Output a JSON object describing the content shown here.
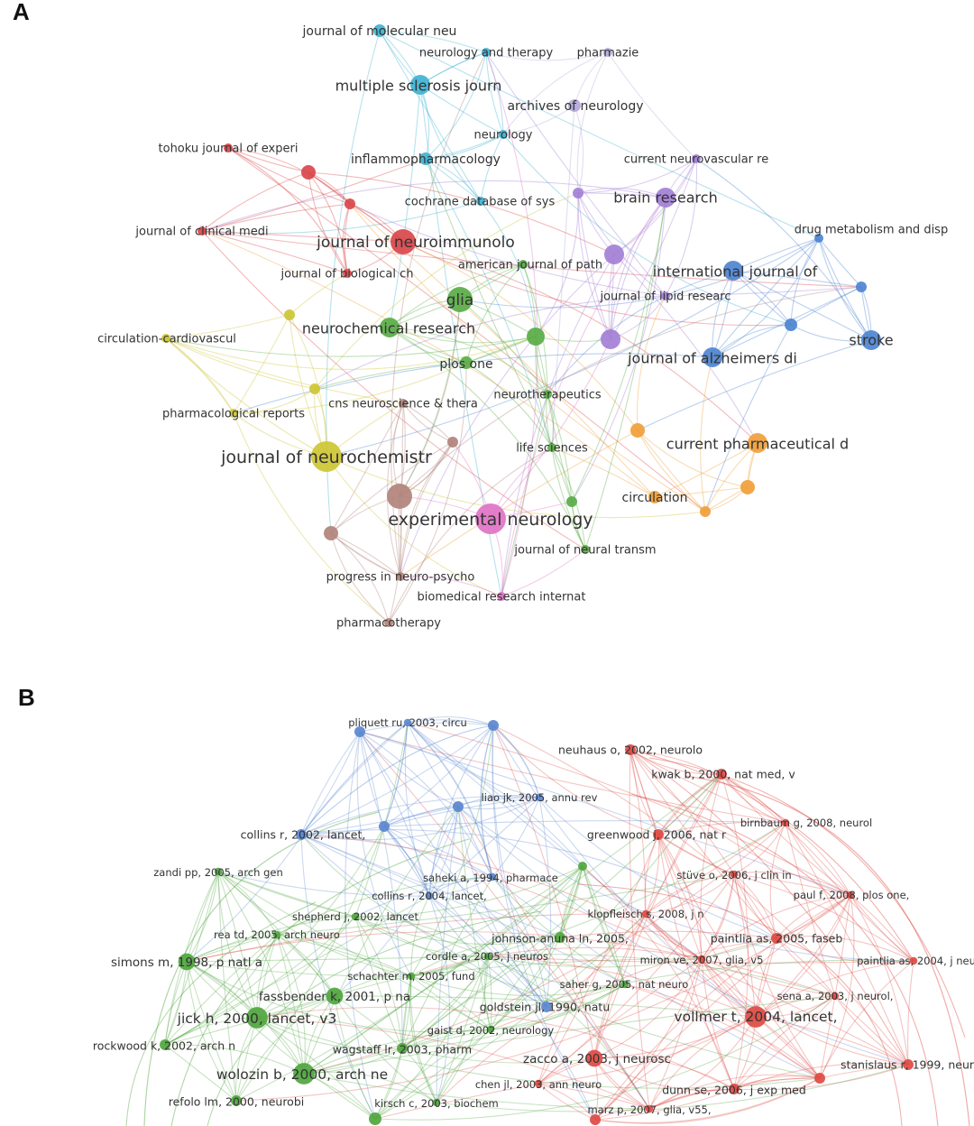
{
  "panels": [
    {
      "letter": "A",
      "colors": {
        "cyan": "#3fb3d2",
        "red": "#d9464a",
        "green": "#59ad47",
        "purple": "#a37fd6",
        "blue": "#4d84d1",
        "yellow": "#cdc635",
        "orange": "#f0a03a",
        "pink": "#e073c6",
        "brown": "#b1837b",
        "lavender": "#b3a7db"
      },
      "nodes": [
        {
          "id": "jmn",
          "label": "journal of molecular neu",
          "cluster": "cyan",
          "size": "s"
        },
        {
          "id": "neuther",
          "label": "neurology and therapy",
          "cluster": "cyan",
          "size": "xs"
        },
        {
          "id": "pharmazie",
          "label": "pharmazie",
          "cluster": "lavender",
          "size": "xs"
        },
        {
          "id": "msj",
          "label": "multiple sclerosis journ",
          "cluster": "cyan",
          "size": "m"
        },
        {
          "id": "archneuro",
          "label": "archives of neurology",
          "cluster": "lavender",
          "size": "s"
        },
        {
          "id": "neurology",
          "label": "neurology",
          "cluster": "cyan",
          "size": "xs"
        },
        {
          "id": "tohoku",
          "label": "tohoku journal of experi",
          "cluster": "red",
          "size": "xs"
        },
        {
          "id": "inflammo",
          "label": "inflammopharmacology",
          "cluster": "cyan",
          "size": "s"
        },
        {
          "id": "curneurovasc",
          "label": "current neurovascular re",
          "cluster": "purple",
          "size": "xs"
        },
        {
          "id": "brainres",
          "label": "brain research",
          "cluster": "purple",
          "size": "m"
        },
        {
          "id": "cochrane",
          "label": "cochrane database of sys",
          "cluster": "cyan",
          "size": "xs"
        },
        {
          "id": "drugmet",
          "label": "drug metabolism and disp",
          "cluster": "blue",
          "size": "xs"
        },
        {
          "id": "jclinmed",
          "label": "journal of clinical medi",
          "cluster": "red",
          "size": "xs"
        },
        {
          "id": "jneuroimm",
          "label": "journal of neuroimmunolo",
          "cluster": "red",
          "size": "l"
        },
        {
          "id": "ajpath",
          "label": "american journal of path",
          "cluster": "green",
          "size": "xs"
        },
        {
          "id": "ijof",
          "label": "international journal of",
          "cluster": "blue",
          "size": "m"
        },
        {
          "id": "jbiolch",
          "label": "journal of biological ch",
          "cluster": "red",
          "size": "xs"
        },
        {
          "id": "glia",
          "label": "glia",
          "cluster": "green",
          "size": "l"
        },
        {
          "id": "jlipid",
          "label": "journal of lipid researc",
          "cluster": "purple",
          "size": "xs"
        },
        {
          "id": "neurochemres",
          "label": "neurochemical research",
          "cluster": "green",
          "size": "m"
        },
        {
          "id": "circcardio",
          "label": "circulation-cardiovascul",
          "cluster": "yellow",
          "size": "xs"
        },
        {
          "id": "stroke",
          "label": "stroke",
          "cluster": "blue",
          "size": "m"
        },
        {
          "id": "plosone",
          "label": "plos one",
          "cluster": "green",
          "size": "s"
        },
        {
          "id": "jalz",
          "label": "journal of alzheimers di",
          "cluster": "blue",
          "size": "m"
        },
        {
          "id": "neurothera",
          "label": "neurotherapeutics",
          "cluster": "green",
          "size": "xs"
        },
        {
          "id": "cnsneuro",
          "label": "cns neuroscience & thera",
          "cluster": "brown",
          "size": "xs"
        },
        {
          "id": "pharmrep",
          "label": "pharmacological reports",
          "cluster": "yellow",
          "size": "xs"
        },
        {
          "id": "curpharm",
          "label": "current pharmaceutical d",
          "cluster": "orange",
          "size": "m"
        },
        {
          "id": "lifesci",
          "label": "life sciences",
          "cluster": "green",
          "size": "xs"
        },
        {
          "id": "jneurochem",
          "label": "journal of neurochemistr",
          "cluster": "yellow",
          "size": "xl"
        },
        {
          "id": "circulation",
          "label": "circulation",
          "cluster": "orange",
          "size": "s"
        },
        {
          "id": "expneuro",
          "label": "experimental neurology",
          "cluster": "pink",
          "size": "xl"
        },
        {
          "id": "jneuraltr",
          "label": "journal of neural transm",
          "cluster": "green",
          "size": "xs"
        },
        {
          "id": "progneuro",
          "label": "progress in neuro-psycho",
          "cluster": "brown",
          "size": "xs"
        },
        {
          "id": "biomedres",
          "label": "biomedical research internat",
          "cluster": "pink",
          "size": "xs"
        },
        {
          "id": "pharmacother",
          "label": "pharmacotherapy",
          "cluster": "brown",
          "size": "xs"
        }
      ]
    },
    {
      "letter": "B",
      "colors": {
        "green": "#4fa63e",
        "blue": "#5b87cf",
        "red": "#de4a43"
      },
      "nodes": [
        {
          "id": "pliquett",
          "label": "pliquett ru, 2003, circu",
          "cluster": "blue",
          "size": "xs"
        },
        {
          "id": "neuhaus",
          "label": "neuhaus o, 2002, neurolo",
          "cluster": "red",
          "size": "s"
        },
        {
          "id": "kwak",
          "label": "kwak b, 2000, nat med, v",
          "cluster": "red",
          "size": "s"
        },
        {
          "id": "liao",
          "label": "liao jk, 2005, annu rev",
          "cluster": "blue",
          "size": "xs"
        },
        {
          "id": "birnbaum",
          "label": "birnbaum g, 2008, neurol",
          "cluster": "red",
          "size": "xs"
        },
        {
          "id": "collins2002",
          "label": "collins r, 2002, lancet,",
          "cluster": "blue",
          "size": "s"
        },
        {
          "id": "greenwood",
          "label": "greenwood j, 2006, nat r",
          "cluster": "red",
          "size": "s"
        },
        {
          "id": "zandi",
          "label": "zandi pp, 2005, arch gen",
          "cluster": "green",
          "size": "xs"
        },
        {
          "id": "saheki",
          "label": "saheki a, 1994, pharmace",
          "cluster": "blue",
          "size": "xs"
        },
        {
          "id": "stuve",
          "label": "stüve o, 2006, j clin in",
          "cluster": "red",
          "size": "xs"
        },
        {
          "id": "collins2004",
          "label": "collins r, 2004, lancet,",
          "cluster": "blue",
          "size": "xs"
        },
        {
          "id": "paul",
          "label": "paul f, 2008, plos one,",
          "cluster": "red",
          "size": "xs"
        },
        {
          "id": "shepherd",
          "label": "shepherd j, 2002, lancet",
          "cluster": "green",
          "size": "xs"
        },
        {
          "id": "klopfleisch",
          "label": "klopfleisch s, 2008, j n",
          "cluster": "red",
          "size": "xs"
        },
        {
          "id": "reatd",
          "label": "rea td, 2005, arch neuro",
          "cluster": "green",
          "size": "xs"
        },
        {
          "id": "johnson",
          "label": "johnson-anuna ln, 2005,",
          "cluster": "green",
          "size": "s"
        },
        {
          "id": "paintlia2005",
          "label": "paintlia as, 2005, faseb",
          "cluster": "red",
          "size": "s"
        },
        {
          "id": "cordle",
          "label": "cordle a, 2005, j neuros",
          "cluster": "green",
          "size": "xs"
        },
        {
          "id": "simons",
          "label": "simons m, 1998, p natl a",
          "cluster": "green",
          "size": "m"
        },
        {
          "id": "miron",
          "label": "miron ve, 2007, glia, v5",
          "cluster": "red",
          "size": "xs"
        },
        {
          "id": "paintlia2004",
          "label": "paintlia as, 2004, j neu",
          "cluster": "red",
          "size": "xs"
        },
        {
          "id": "schachter",
          "label": "schachter m, 2005, fund",
          "cluster": "green",
          "size": "xs"
        },
        {
          "id": "saher",
          "label": "saher g, 2005, nat neuro",
          "cluster": "green",
          "size": "xs"
        },
        {
          "id": "fassbender",
          "label": "fassbender k, 2001, p na",
          "cluster": "green",
          "size": "m"
        },
        {
          "id": "sena",
          "label": "sena a, 2003, j neurol,",
          "cluster": "red",
          "size": "xs"
        },
        {
          "id": "goldstein",
          "label": "goldstein jl, 1990, natu",
          "cluster": "blue",
          "size": "s"
        },
        {
          "id": "jick",
          "label": "jick h, 2000, lancet, v3",
          "cluster": "green",
          "size": "l"
        },
        {
          "id": "vollmer",
          "label": "vollmer t, 2004, lancet,",
          "cluster": "red",
          "size": "l"
        },
        {
          "id": "gaist",
          "label": "gaist d, 2002, neurology",
          "cluster": "green",
          "size": "xs"
        },
        {
          "id": "rockwood",
          "label": "rockwood k, 2002, arch n",
          "cluster": "green",
          "size": "s"
        },
        {
          "id": "wagstaff",
          "label": "wagstaff lr, 2003, pharm",
          "cluster": "green",
          "size": "s"
        },
        {
          "id": "zacco",
          "label": "zacco a, 2003, j neurosc",
          "cluster": "red",
          "size": "m"
        },
        {
          "id": "stanislaus",
          "label": "stanislaus r, 1999, neur",
          "cluster": "red",
          "size": "s"
        },
        {
          "id": "wolozin",
          "label": "wolozin b, 2000, arch ne",
          "cluster": "green",
          "size": "l"
        },
        {
          "id": "chen",
          "label": "chen jl, 2003, ann neuro",
          "cluster": "red",
          "size": "xs"
        },
        {
          "id": "dunn",
          "label": "dunn se, 2006, j exp med",
          "cluster": "red",
          "size": "s"
        },
        {
          "id": "refolo",
          "label": "refolo lm, 2000, neurobi",
          "cluster": "green",
          "size": "s"
        },
        {
          "id": "kirsch",
          "label": "kirsch c, 2003, biochem",
          "cluster": "green",
          "size": "xs"
        },
        {
          "id": "marz",
          "label": "marz p, 2007, glia, v55,",
          "cluster": "red",
          "size": "xs"
        }
      ]
    }
  ]
}
